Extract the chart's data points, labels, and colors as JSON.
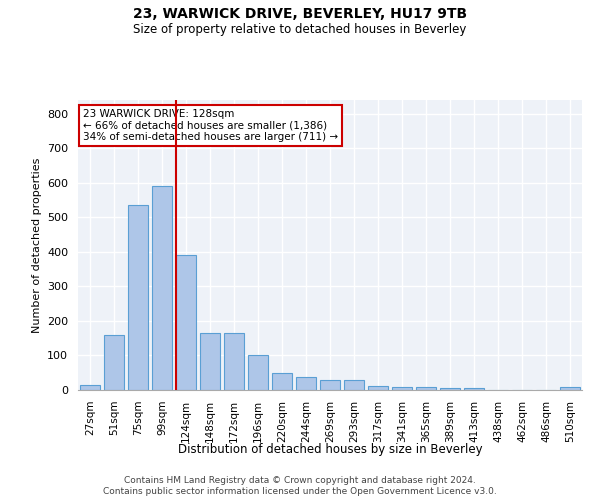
{
  "title1": "23, WARWICK DRIVE, BEVERLEY, HU17 9TB",
  "title2": "Size of property relative to detached houses in Beverley",
  "xlabel": "Distribution of detached houses by size in Beverley",
  "ylabel": "Number of detached properties",
  "categories": [
    "27sqm",
    "51sqm",
    "75sqm",
    "99sqm",
    "124sqm",
    "148sqm",
    "172sqm",
    "196sqm",
    "220sqm",
    "244sqm",
    "269sqm",
    "293sqm",
    "317sqm",
    "341sqm",
    "365sqm",
    "389sqm",
    "413sqm",
    "438sqm",
    "462sqm",
    "486sqm",
    "510sqm"
  ],
  "values": [
    15,
    160,
    535,
    590,
    390,
    165,
    165,
    100,
    48,
    38,
    30,
    30,
    12,
    8,
    8,
    5,
    5,
    0,
    0,
    0,
    8
  ],
  "bar_color": "#aec6e8",
  "bar_edge_color": "#5a9fd4",
  "bar_linewidth": 0.8,
  "annotation_text": "23 WARWICK DRIVE: 128sqm\n← 66% of detached houses are smaller (1,386)\n34% of semi-detached houses are larger (711) →",
  "annotation_box_color": "white",
  "annotation_box_edge_color": "#cc0000",
  "vline_color": "#cc0000",
  "vline_x": 3.575,
  "ylim": [
    0,
    840
  ],
  "yticks": [
    0,
    100,
    200,
    300,
    400,
    500,
    600,
    700,
    800
  ],
  "bg_color": "#eef2f8",
  "grid_color": "white",
  "footer1": "Contains HM Land Registry data © Crown copyright and database right 2024.",
  "footer2": "Contains public sector information licensed under the Open Government Licence v3.0.",
  "fig_width": 6.0,
  "fig_height": 5.0
}
